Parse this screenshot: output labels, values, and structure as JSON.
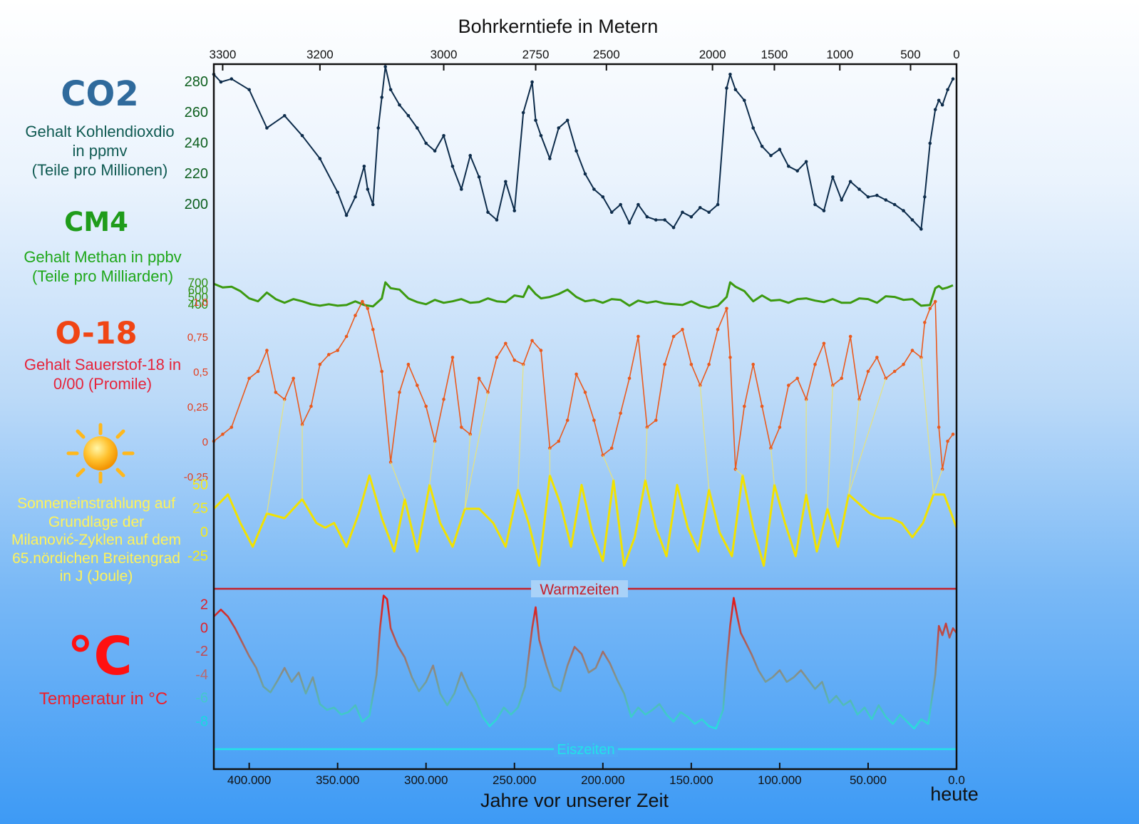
{
  "top_title": "Bohrkerntiefe in Metern",
  "bottom_title": "Jahre vor unserer Zeit",
  "heute": "heute",
  "colors": {
    "co2": "#0d2c4b",
    "ch4": "#3c9a10",
    "o18": "#ea5a1e",
    "sun": "#f2e200",
    "warm": "#c4202b",
    "cold": "#22e3e8",
    "axis": "#111111"
  },
  "labels": {
    "co2_symbol": "CO2",
    "co2_text": [
      "Gehalt Kohlendioxdio",
      "in ppmv",
      "(Teile pro Millionen)"
    ],
    "ch4_symbol": "CM4",
    "ch4_text": [
      "Gehalt Methan in ppbv",
      "(Teile pro Milliarden)"
    ],
    "o18_symbol": "O-18",
    "o18_text": [
      "Gehalt Sauerstof-18 in",
      "0/00 (Promile)"
    ],
    "sun_text": [
      "Sonneneinstrahlung auf",
      "Grundlage der",
      "Milanović-Zyklen auf dem",
      "65.nördichen Breitengrad",
      "in J (Joule)"
    ],
    "temp_symbol": "°C",
    "temp_text": "Temperatur in °C",
    "warm": "Warmzeiten",
    "cold": "Eiszeiten"
  },
  "chart_data": {
    "type": "line",
    "x_axis": {
      "label": "Jahre vor unserer Zeit",
      "min": 420000,
      "max": 0,
      "ticks": [
        "400.000",
        "350.000",
        "300.000",
        "250.000",
        "200.000",
        "150.000",
        "100.000",
        "50.000",
        "0.0"
      ],
      "tick_values": [
        400000,
        350000,
        300000,
        250000,
        200000,
        150000,
        100000,
        50000,
        0
      ]
    },
    "top_axis": {
      "label": "Bohrkerntiefe in Metern",
      "ticks": [
        "3300",
        "3200",
        "3000",
        "2750",
        "2500",
        "2000",
        "1500",
        "1000",
        "500",
        "0"
      ],
      "tick_years": [
        415000,
        360000,
        290000,
        238000,
        198000,
        138000,
        103000,
        66000,
        26000,
        0
      ]
    },
    "series": [
      {
        "name": "CO2",
        "unit": "ppmv",
        "yticks": [
          "280",
          "260",
          "240",
          "220",
          "200"
        ],
        "ylim": [
          180,
          300
        ],
        "x": [
          420000,
          416000,
          410000,
          400000,
          390000,
          380000,
          370000,
          360000,
          350000,
          345000,
          340000,
          335000,
          333000,
          330000,
          327000,
          325000,
          323000,
          320000,
          315000,
          310000,
          305000,
          300000,
          295000,
          290000,
          285000,
          280000,
          275000,
          270000,
          265000,
          260000,
          255000,
          250000,
          245000,
          240000,
          238000,
          235000,
          230000,
          225000,
          220000,
          215000,
          210000,
          205000,
          200000,
          195000,
          190000,
          185000,
          180000,
          175000,
          170000,
          165000,
          160000,
          155000,
          150000,
          145000,
          140000,
          135000,
          130000,
          128000,
          125000,
          120000,
          115000,
          110000,
          105000,
          100000,
          95000,
          90000,
          85000,
          80000,
          75000,
          70000,
          65000,
          60000,
          55000,
          50000,
          45000,
          40000,
          35000,
          30000,
          25000,
          20000,
          18000,
          15000,
          12000,
          10000,
          8000,
          5000,
          2000
        ],
        "y": [
          285,
          280,
          282,
          275,
          250,
          258,
          245,
          230,
          208,
          193,
          205,
          225,
          210,
          200,
          250,
          270,
          290,
          275,
          265,
          258,
          250,
          240,
          235,
          245,
          225,
          210,
          232,
          218,
          195,
          190,
          215,
          196,
          260,
          280,
          255,
          245,
          230,
          250,
          255,
          235,
          220,
          210,
          205,
          195,
          200,
          188,
          200,
          192,
          190,
          190,
          185,
          195,
          192,
          198,
          195,
          200,
          276,
          285,
          275,
          268,
          250,
          238,
          232,
          236,
          225,
          222,
          228,
          200,
          196,
          218,
          203,
          215,
          210,
          205,
          206,
          203,
          200,
          196,
          190,
          184,
          205,
          240,
          262,
          268,
          265,
          275,
          282
        ]
      },
      {
        "name": "CH4",
        "unit": "ppbv",
        "yticks": [
          "700",
          "600",
          "500",
          "400"
        ],
        "ylim": [
          330,
          730
        ],
        "x": [
          420000,
          415000,
          410000,
          405000,
          400000,
          395000,
          390000,
          385000,
          380000,
          375000,
          370000,
          365000,
          360000,
          355000,
          350000,
          345000,
          340000,
          335000,
          330000,
          325000,
          323000,
          320000,
          315000,
          310000,
          305000,
          300000,
          295000,
          290000,
          285000,
          280000,
          275000,
          270000,
          265000,
          260000,
          255000,
          250000,
          245000,
          242000,
          238000,
          235000,
          230000,
          225000,
          220000,
          215000,
          210000,
          205000,
          200000,
          195000,
          190000,
          185000,
          180000,
          175000,
          170000,
          165000,
          160000,
          155000,
          150000,
          145000,
          140000,
          135000,
          130000,
          128000,
          125000,
          120000,
          115000,
          110000,
          105000,
          100000,
          95000,
          90000,
          85000,
          80000,
          75000,
          70000,
          65000,
          60000,
          55000,
          50000,
          45000,
          40000,
          35000,
          30000,
          25000,
          20000,
          15000,
          12000,
          10000,
          8000,
          5000,
          2000
        ],
        "y": [
          680,
          630,
          640,
          580,
          480,
          440,
          560,
          470,
          420,
          470,
          440,
          400,
          380,
          400,
          380,
          390,
          440,
          390,
          370,
          480,
          700,
          620,
          600,
          480,
          430,
          400,
          460,
          420,
          440,
          470,
          420,
          430,
          480,
          440,
          430,
          520,
          500,
          650,
          540,
          480,
          500,
          540,
          600,
          500,
          440,
          460,
          420,
          470,
          460,
          380,
          450,
          420,
          440,
          410,
          400,
          390,
          440,
          380,
          350,
          380,
          500,
          700,
          640,
          580,
          440,
          520,
          450,
          460,
          420,
          470,
          480,
          450,
          430,
          470,
          420,
          420,
          480,
          470,
          420,
          510,
          500,
          460,
          470,
          380,
          390,
          620,
          650,
          610,
          630,
          660
        ]
      },
      {
        "name": "O-18",
        "unit": "‰",
        "yticks": [
          "-0,25",
          "0",
          "0,25",
          "0,5",
          "0,75",
          "1,0"
        ],
        "ylim": [
          -0.25,
          1.0
        ],
        "x": [
          420000,
          415000,
          410000,
          400000,
          395000,
          390000,
          385000,
          380000,
          375000,
          370000,
          365000,
          360000,
          355000,
          350000,
          345000,
          340000,
          336000,
          333000,
          330000,
          325000,
          320000,
          315000,
          310000,
          305000,
          300000,
          295000,
          290000,
          285000,
          280000,
          275000,
          270000,
          265000,
          260000,
          255000,
          250000,
          245000,
          240000,
          235000,
          230000,
          225000,
          220000,
          215000,
          210000,
          205000,
          200000,
          195000,
          190000,
          185000,
          180000,
          175000,
          170000,
          165000,
          160000,
          155000,
          150000,
          145000,
          140000,
          135000,
          130000,
          128000,
          125000,
          120000,
          115000,
          110000,
          105000,
          100000,
          95000,
          90000,
          85000,
          80000,
          75000,
          70000,
          65000,
          60000,
          55000,
          50000,
          45000,
          40000,
          35000,
          30000,
          25000,
          20000,
          18000,
          15000,
          12000,
          10000,
          8000,
          5000,
          2000
        ],
        "y": [
          0.0,
          0.05,
          0.1,
          0.45,
          0.5,
          0.65,
          0.35,
          0.3,
          0.45,
          0.12,
          0.25,
          0.55,
          0.62,
          0.65,
          0.75,
          0.9,
          1.0,
          0.95,
          0.8,
          0.5,
          -0.15,
          0.35,
          0.55,
          0.4,
          0.25,
          0.0,
          0.3,
          0.6,
          0.1,
          0.05,
          0.45,
          0.35,
          0.6,
          0.7,
          0.58,
          0.55,
          0.72,
          0.65,
          -0.05,
          0.0,
          0.15,
          0.48,
          0.35,
          0.15,
          -0.1,
          -0.05,
          0.2,
          0.45,
          0.75,
          0.1,
          0.15,
          0.55,
          0.75,
          0.8,
          0.55,
          0.4,
          0.55,
          0.8,
          0.95,
          0.6,
          -0.2,
          0.25,
          0.55,
          0.25,
          -0.05,
          0.1,
          0.4,
          0.45,
          0.3,
          0.55,
          0.7,
          0.4,
          0.45,
          0.75,
          0.3,
          0.5,
          0.6,
          0.45,
          0.5,
          0.55,
          0.65,
          0.6,
          0.85,
          0.95,
          1.0,
          0.1,
          -0.2,
          0.0,
          0.05
        ]
      },
      {
        "name": "Sonneneinstrahlung",
        "unit": "J",
        "yticks": [
          "50",
          "25",
          "0",
          "-25"
        ],
        "ylim": [
          -45,
          75
        ],
        "x": [
          420000,
          412000,
          405000,
          398000,
          390000,
          380000,
          370000,
          362000,
          357000,
          352000,
          345000,
          338000,
          332000,
          325000,
          318000,
          312000,
          305000,
          298000,
          292000,
          285000,
          278000,
          270000,
          262000,
          255000,
          248000,
          242000,
          236000,
          230000,
          224000,
          218000,
          212000,
          206000,
          200000,
          194000,
          188000,
          182000,
          176000,
          170000,
          164000,
          158000,
          152000,
          146000,
          140000,
          134000,
          127000,
          121000,
          115000,
          109000,
          103000,
          97000,
          91000,
          85000,
          79000,
          73000,
          67000,
          61000,
          55000,
          49000,
          43000,
          37000,
          31000,
          25000,
          19000,
          13000,
          7000,
          0
        ],
        "y": [
          25,
          40,
          10,
          -15,
          20,
          15,
          35,
          10,
          5,
          10,
          -15,
          20,
          60,
          15,
          -20,
          35,
          -20,
          50,
          10,
          -15,
          25,
          25,
          10,
          -15,
          45,
          10,
          -35,
          60,
          30,
          -15,
          50,
          0,
          -30,
          55,
          -35,
          -5,
          55,
          5,
          -25,
          50,
          5,
          -20,
          45,
          0,
          -25,
          60,
          5,
          -35,
          50,
          10,
          -25,
          40,
          -20,
          25,
          -15,
          40,
          30,
          20,
          15,
          15,
          10,
          -5,
          10,
          40,
          40,
          5
        ]
      },
      {
        "name": "Temperatur",
        "unit": "°C",
        "yticks": [
          "2",
          "0",
          "-2",
          "-4",
          "-6",
          "-8"
        ],
        "ylim": [
          -10,
          3.2
        ],
        "x": [
          420000,
          416000,
          412000,
          408000,
          404000,
          400000,
          396000,
          392000,
          388000,
          384000,
          380000,
          376000,
          372000,
          368000,
          364000,
          360000,
          356000,
          352000,
          348000,
          344000,
          340000,
          336000,
          332000,
          328000,
          326000,
          324000,
          322000,
          320000,
          316000,
          312000,
          308000,
          304000,
          300000,
          296000,
          292000,
          288000,
          284000,
          280000,
          276000,
          272000,
          268000,
          264000,
          260000,
          256000,
          252000,
          248000,
          244000,
          240000,
          238000,
          236000,
          232000,
          228000,
          224000,
          220000,
          216000,
          212000,
          208000,
          204000,
          200000,
          196000,
          192000,
          188000,
          184000,
          180000,
          176000,
          172000,
          168000,
          164000,
          160000,
          156000,
          152000,
          148000,
          144000,
          140000,
          136000,
          132000,
          130000,
          128000,
          126000,
          124000,
          122000,
          120000,
          116000,
          112000,
          108000,
          104000,
          100000,
          96000,
          92000,
          88000,
          84000,
          80000,
          76000,
          72000,
          68000,
          64000,
          60000,
          56000,
          52000,
          48000,
          44000,
          40000,
          36000,
          32000,
          28000,
          24000,
          20000,
          16000,
          12000,
          10000,
          8000,
          6000,
          4000,
          2000,
          0
        ],
        "y": [
          1.0,
          1.6,
          1.0,
          0.0,
          -1.2,
          -2.4,
          -3.4,
          -5.0,
          -5.5,
          -4.5,
          -3.4,
          -4.6,
          -3.8,
          -5.6,
          -4.2,
          -6.5,
          -7.0,
          -6.8,
          -7.4,
          -7.2,
          -6.6,
          -8.0,
          -7.5,
          -4.0,
          0.0,
          2.8,
          2.5,
          0.0,
          -1.5,
          -2.5,
          -4.2,
          -5.4,
          -4.6,
          -3.2,
          -5.6,
          -6.6,
          -5.6,
          -3.8,
          -5.2,
          -6.2,
          -7.6,
          -8.4,
          -7.8,
          -6.8,
          -7.4,
          -6.8,
          -5.0,
          0.0,
          1.8,
          -1.0,
          -3.2,
          -5.0,
          -5.4,
          -3.2,
          -1.6,
          -2.2,
          -3.8,
          -3.4,
          -2.0,
          -3.0,
          -4.4,
          -5.6,
          -7.6,
          -6.8,
          -7.4,
          -7.0,
          -6.5,
          -7.4,
          -8.0,
          -7.2,
          -7.6,
          -8.2,
          -7.8,
          -8.4,
          -8.6,
          -7.0,
          -3.0,
          0.2,
          2.6,
          1.0,
          -0.4,
          -1.0,
          -2.2,
          -3.6,
          -4.6,
          -4.2,
          -3.6,
          -4.6,
          -4.2,
          -3.6,
          -4.4,
          -5.2,
          -4.6,
          -6.4,
          -5.8,
          -6.6,
          -6.2,
          -7.4,
          -6.8,
          -7.8,
          -6.6,
          -7.6,
          -8.2,
          -7.4,
          -8.0,
          -8.6,
          -7.8,
          -8.2,
          -4.0,
          0.2,
          -0.6,
          0.4,
          -0.8,
          0.0,
          -0.4
        ]
      }
    ]
  }
}
